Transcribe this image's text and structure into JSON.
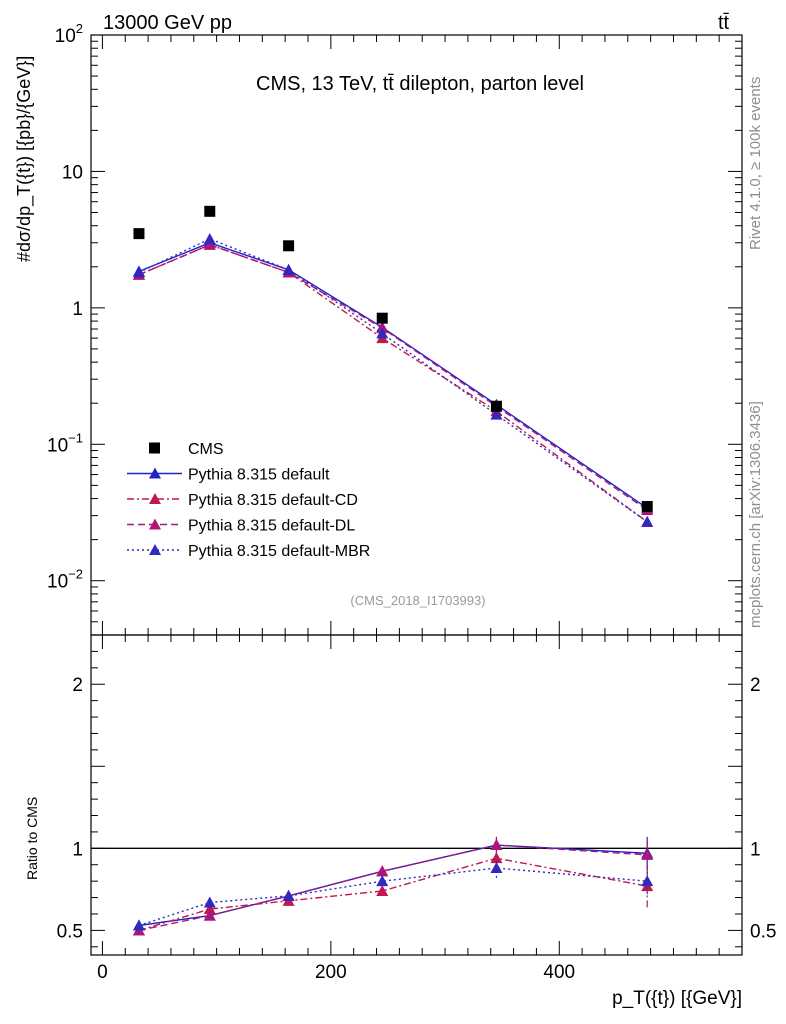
{
  "header": {
    "beam": "13000 GeV pp",
    "process": "tt̄",
    "panel_title": "CMS, 13 TeV, tt̄ dilepton, parton level",
    "analysis_id": "(CMS_2018_I1703993)",
    "side_rivet": "Rivet 4.1.0, ≥ 100k events",
    "side_site": "mcplots.cern.ch [arXiv:1306.3436]"
  },
  "axes": {
    "ylabel_main": "#dσ/dp_T({t}) [{pb}/{GeV}]",
    "ylabel_ratio": "Ratio to CMS",
    "xlabel": "p_T({t}) [{GeV}]"
  },
  "chart_data": [
    {
      "type": "line",
      "panel": "main",
      "yscale": "log",
      "xlim": [
        -10,
        560
      ],
      "ylim": [
        0.004,
        100
      ],
      "x": [
        32,
        94,
        163,
        245,
        345,
        477
      ],
      "xerr": [
        [
          0,
          65
        ],
        [
          65,
          125
        ],
        [
          125,
          200
        ],
        [
          200,
          290
        ],
        [
          290,
          400
        ],
        [
          400,
          550
        ]
      ],
      "yticks": [
        {
          "value": 0.01,
          "label": "10^-2"
        },
        {
          "value": 0.1,
          "label": "10^-1"
        },
        {
          "value": 1,
          "label": "1"
        },
        {
          "value": 10,
          "label": "10"
        },
        {
          "value": 100,
          "label": "10^2"
        }
      ],
      "series": [
        {
          "name": "CMS",
          "marker": "square",
          "color": "#000000",
          "line": "none",
          "values": [
            3.5,
            5.1,
            2.85,
            0.84,
            0.19,
            0.035
          ]
        },
        {
          "name": "Pythia 8.315 default",
          "marker": "triangle",
          "color": "#1f24c9",
          "line": "solid",
          "values": [
            1.85,
            3.0,
            1.9,
            0.72,
            0.195,
            0.034
          ]
        },
        {
          "name": "Pythia 8.315 default-CD",
          "marker": "triangle",
          "color": "#c0174f",
          "line": "dashdot",
          "values": [
            1.75,
            2.9,
            1.82,
            0.6,
            0.175,
            0.027
          ]
        },
        {
          "name": "Pythia 8.315 default-DL",
          "marker": "triangle",
          "color": "#ad1678",
          "line": "dashed",
          "values": [
            1.75,
            2.9,
            1.82,
            0.71,
            0.19,
            0.033
          ]
        },
        {
          "name": "Pythia 8.315 default-MBR",
          "marker": "triangle",
          "color": "#3128bf",
          "line": "dotted",
          "values": [
            1.82,
            3.2,
            1.9,
            0.65,
            0.165,
            0.027
          ]
        }
      ]
    },
    {
      "type": "line",
      "panel": "ratio",
      "yscale": "linear",
      "xlim": [
        -10,
        560
      ],
      "ylim": [
        0.35,
        2.3
      ],
      "x": [
        32,
        94,
        163,
        245,
        345,
        477
      ],
      "xticks": [
        0,
        200,
        400
      ],
      "yticks": [
        0.5,
        1,
        2
      ],
      "series": [
        {
          "name": "Pythia 8.315 default",
          "color": "#1f24c9",
          "line": "solid",
          "values": [
            0.53,
            0.59,
            0.71,
            0.86,
            1.02,
            0.97
          ],
          "err": [
            0.03,
            0.01,
            0.02,
            0.03,
            0.05,
            0.1
          ]
        },
        {
          "name": "Pythia 8.315 default-CD",
          "color": "#c0174f",
          "line": "dashdot",
          "values": [
            0.5,
            0.63,
            0.68,
            0.74,
            0.94,
            0.77
          ],
          "err": [
            0.02,
            0.02,
            0.02,
            0.03,
            0.04,
            0.13
          ]
        },
        {
          "name": "Pythia 8.315 default-DL",
          "color": "#ad1678",
          "line": "dashed",
          "values": [
            0.5,
            0.59,
            0.71,
            0.86,
            1.02,
            0.96
          ],
          "err": [
            0.02,
            0.01,
            0.02,
            0.03,
            0.05,
            0.1
          ]
        },
        {
          "name": "Pythia 8.315 default-MBR",
          "color": "#3128bf",
          "line": "dotted",
          "values": [
            0.53,
            0.67,
            0.71,
            0.8,
            0.88,
            0.8
          ],
          "err": [
            0.02,
            0.02,
            0.02,
            0.03,
            0.06,
            0.08
          ]
        }
      ]
    }
  ]
}
